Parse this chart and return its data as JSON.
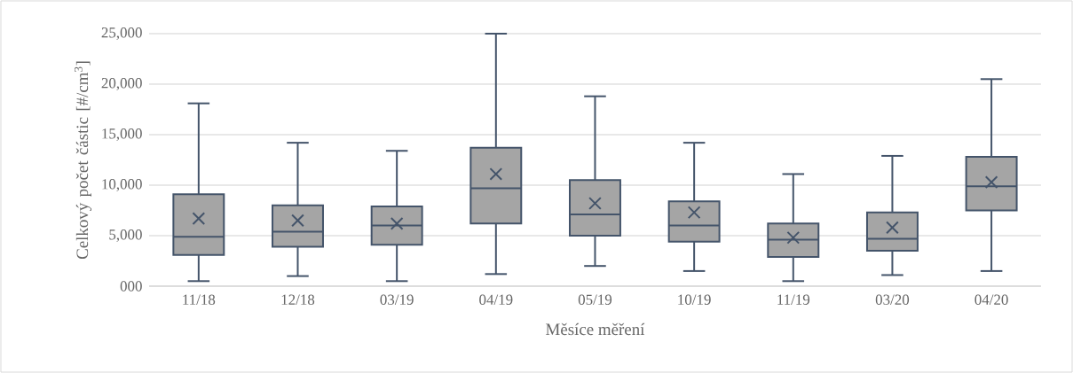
{
  "chart_data": {
    "type": "box",
    "xlabel": "Měsíce měření",
    "ylabel": "Celkový počet částic [#/cm$^{3}$]",
    "categories": [
      "11/18",
      "12/18",
      "03/19",
      "04/19",
      "05/19",
      "10/19",
      "11/19",
      "03/20",
      "04/20"
    ],
    "boxes": [
      {
        "low": 500,
        "q1": 3100,
        "median": 4900,
        "q3": 9100,
        "high": 18100,
        "mean": 6700
      },
      {
        "low": 1000,
        "q1": 3900,
        "median": 5400,
        "q3": 8000,
        "high": 14200,
        "mean": 6500
      },
      {
        "low": 500,
        "q1": 4100,
        "median": 6000,
        "q3": 7900,
        "high": 13400,
        "mean": 6200
      },
      {
        "low": 1200,
        "q1": 6200,
        "median": 9700,
        "q3": 13700,
        "high": 25000,
        "mean": 11100
      },
      {
        "low": 2000,
        "q1": 5000,
        "median": 7100,
        "q3": 10500,
        "high": 18800,
        "mean": 8200
      },
      {
        "low": 1500,
        "q1": 4400,
        "median": 6000,
        "q3": 8400,
        "high": 14200,
        "mean": 7300
      },
      {
        "low": 500,
        "q1": 2900,
        "median": 4600,
        "q3": 6200,
        "high": 11100,
        "mean": 4800
      },
      {
        "low": 1100,
        "q1": 3500,
        "median": 4700,
        "q3": 7300,
        "high": 12900,
        "mean": 5800
      },
      {
        "low": 1500,
        "q1": 7500,
        "median": 9900,
        "q3": 12800,
        "high": 20500,
        "mean": 10300
      }
    ],
    "color": "#a5a5a5",
    "ylim": [
      0,
      25000
    ],
    "yticks": [
      {
        "value": 0,
        "label": "000"
      },
      {
        "value": 5000,
        "label": "5,000"
      },
      {
        "value": 10000,
        "label": "10,000"
      },
      {
        "value": 15000,
        "label": "15,000"
      },
      {
        "value": 20000,
        "label": "20,000"
      },
      {
        "value": 25000,
        "label": "25,000"
      }
    ],
    "grid": "y",
    "marker": "cross"
  }
}
